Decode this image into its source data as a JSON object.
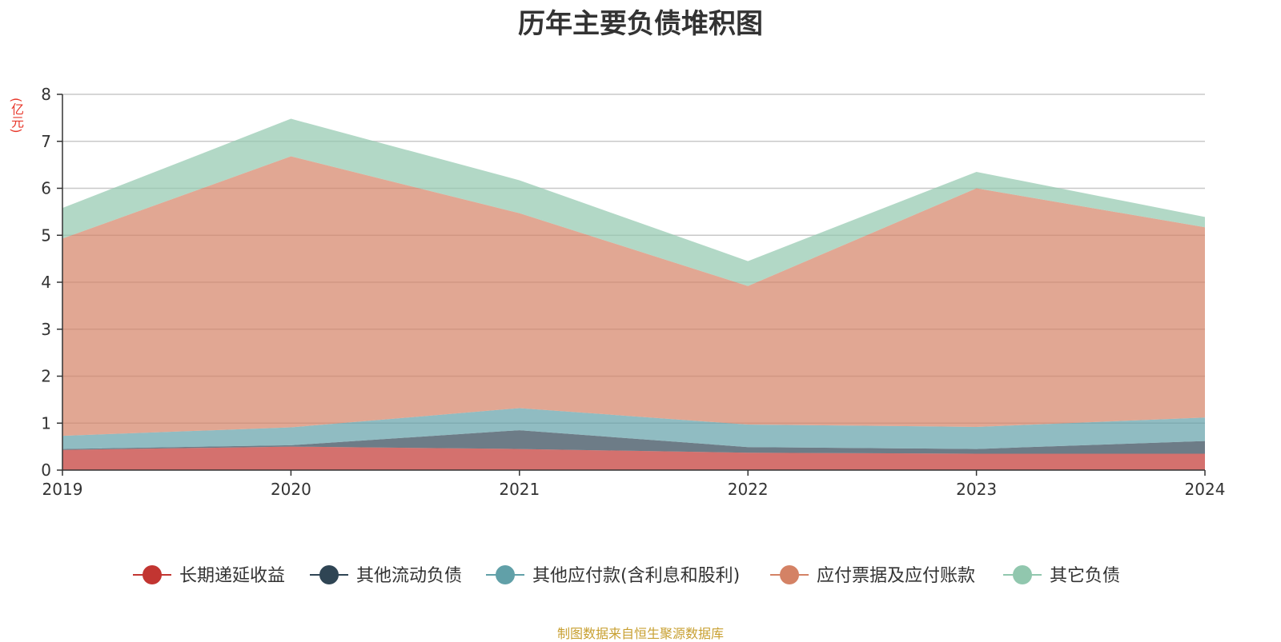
{
  "chart_data": {
    "type": "area",
    "stacked": true,
    "title": "历年主要负债堆积图",
    "unit": "(亿元)",
    "x": [
      "2019",
      "2020",
      "2021",
      "2022",
      "2023",
      "2024"
    ],
    "ylim": [
      0,
      8
    ],
    "yticks": [
      "0",
      "1",
      "2",
      "3",
      "4",
      "5",
      "6",
      "7",
      "8"
    ],
    "grid": true,
    "legend_position": "bottom",
    "series": [
      {
        "name": "长期递延收益",
        "color": "#c23531",
        "values": [
          0.43,
          0.5,
          0.45,
          0.37,
          0.35,
          0.35
        ]
      },
      {
        "name": "其他流动负债",
        "color": "#2f4554",
        "values": [
          0.02,
          0.03,
          0.4,
          0.12,
          0.1,
          0.27
        ]
      },
      {
        "name": "其他应付款(含利息和股利)",
        "color": "#61a0a8",
        "values": [
          0.28,
          0.38,
          0.47,
          0.48,
          0.47,
          0.5
        ]
      },
      {
        "name": "应付票据及应付账款",
        "color": "#d48265",
        "values": [
          4.2,
          5.77,
          4.15,
          2.95,
          5.08,
          4.05
        ]
      },
      {
        "name": "其它负债",
        "color": "#91c7ae",
        "values": [
          0.65,
          0.8,
          0.7,
          0.53,
          0.35,
          0.22
        ]
      }
    ]
  },
  "source_note": "制图数据来自恒生聚源数据库"
}
